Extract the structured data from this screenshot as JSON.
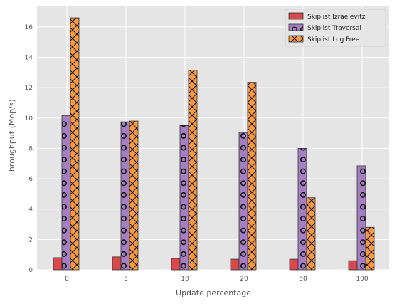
{
  "chart_data": {
    "type": "bar",
    "title": "",
    "xlabel": "Update percentage",
    "ylabel": "Throughput (Mop/s)",
    "categories": [
      "0",
      "5",
      "10",
      "20",
      "50",
      "100"
    ],
    "ylim": [
      0,
      17.4
    ],
    "yticks": [
      0,
      2,
      4,
      6,
      8,
      10,
      12,
      14,
      16
    ],
    "grid": true,
    "legend_position": "top-right",
    "series": [
      {
        "name": "Skiplist Izraelevitz",
        "values": [
          0.8,
          0.85,
          0.75,
          0.7,
          0.7,
          0.6
        ],
        "color": "#d9484a",
        "hatch": "none"
      },
      {
        "name": "Skiplist Traversal",
        "values": [
          10.15,
          9.75,
          9.5,
          9.05,
          8.0,
          6.85
        ],
        "color": "#a67fc3",
        "hatch": "circles"
      },
      {
        "name": "Skiplist Log Free",
        "values": [
          16.6,
          9.8,
          13.15,
          12.35,
          4.75,
          2.8
        ],
        "color": "#f89a3d",
        "hatch": "crosses"
      }
    ]
  }
}
